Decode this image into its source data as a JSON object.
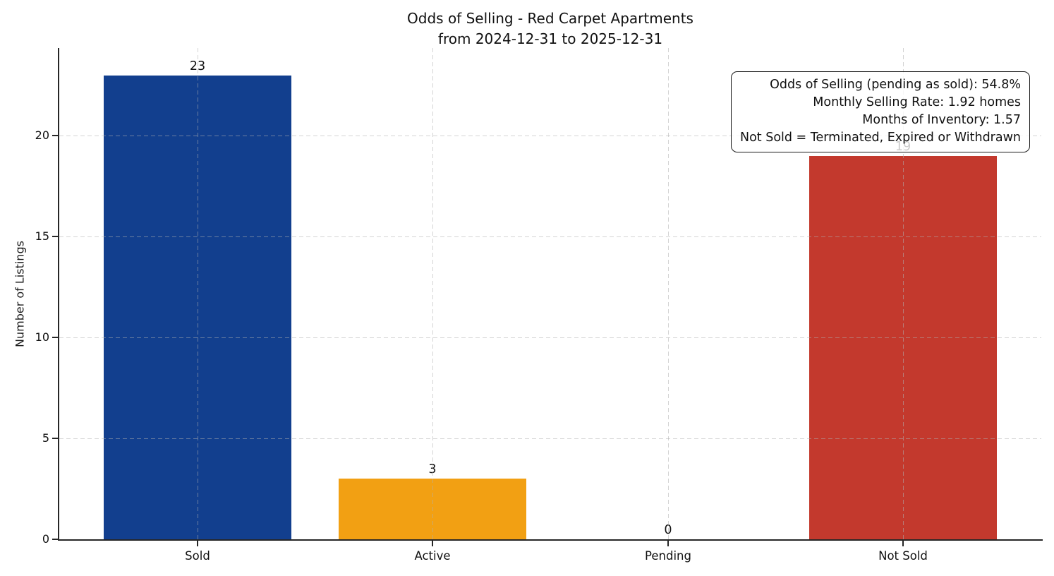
{
  "chart_data": {
    "type": "bar",
    "title": "Odds of Selling - Red Carpet Apartments",
    "subtitle": "from 2024-12-31 to 2025-12-31",
    "xlabel": "",
    "ylabel": "Number of Listings",
    "categories": [
      "Sold",
      "Active",
      "Pending",
      "Not Sold"
    ],
    "values": [
      23,
      3,
      0,
      19
    ],
    "bar_value_labels": [
      "23",
      "3",
      "0",
      "19"
    ],
    "bar_colors": [
      "#123F8E",
      "#F2A013",
      null,
      "#C3392D"
    ],
    "yticks": [
      0,
      5,
      10,
      15,
      20
    ],
    "ylim": [
      0,
      24.35
    ],
    "grid": {
      "axis": "both",
      "linestyle": "dashed",
      "color": "#b0b0b0",
      "drawn_over_bars": true
    },
    "legend": null,
    "annotation": {
      "position": "upper right",
      "align": "right",
      "lines": [
        "Odds of Selling (pending as sold): 54.8%",
        "Monthly Selling Rate: 1.92 homes",
        "Months of Inventory: 1.57",
        "Not Sold = Terminated, Expired or Withdrawn"
      ]
    },
    "colors": {
      "sold_bar": "#123F8E",
      "active_bar": "#F2A013",
      "not_sold_bar": "#C3392D",
      "axis_spine": "#262626",
      "text": "#111111"
    }
  }
}
